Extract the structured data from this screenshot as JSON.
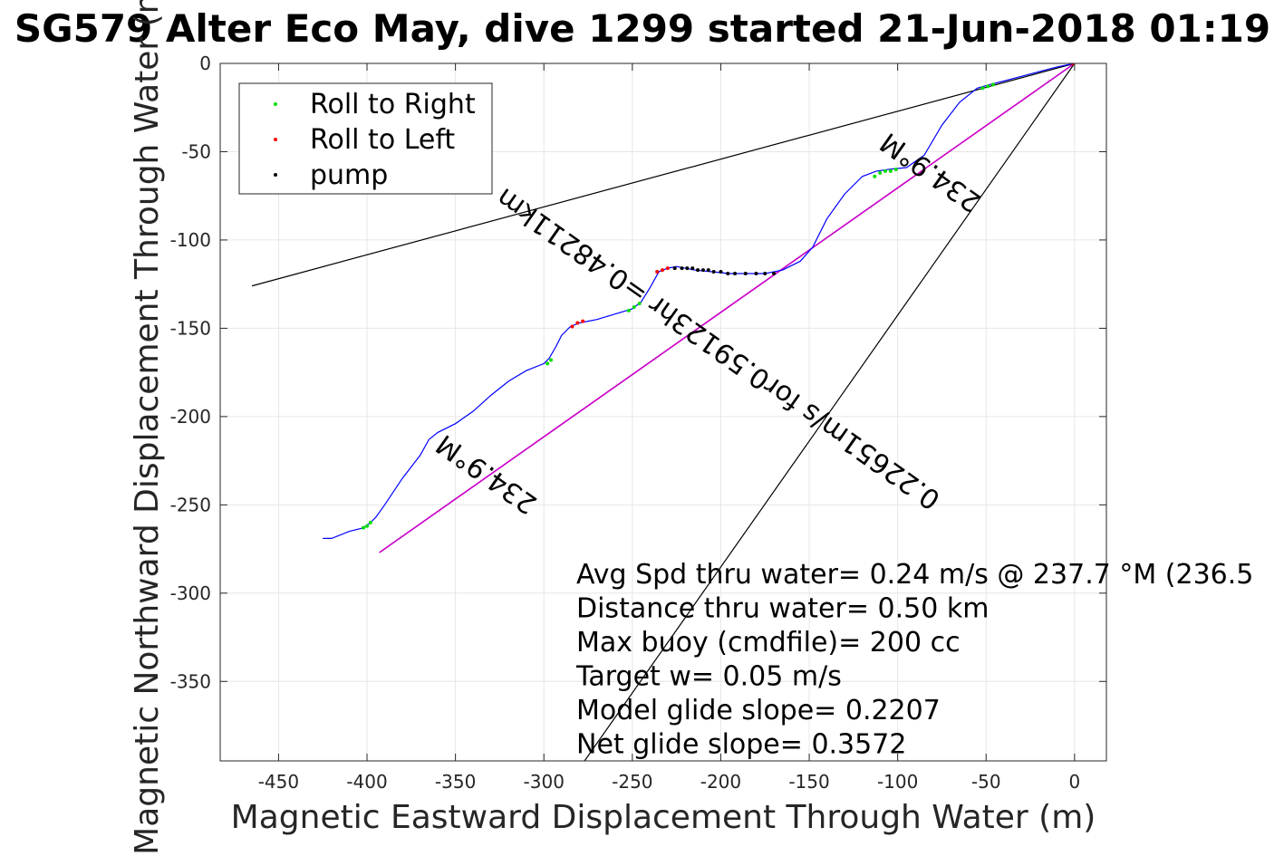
{
  "chart_data": {
    "type": "line",
    "title": "SG579 Alter Eco May, dive 1299 started 21-Jun-2018 01:19",
    "xlabel": "Magnetic Eastward Displacement Through Water (m)",
    "ylabel": "Magnetic Northward Displacement Through Water (m)",
    "xlim": [
      -483,
      18
    ],
    "ylim": [
      -395,
      0
    ],
    "xticks": [
      -450,
      -400,
      -350,
      -300,
      -250,
      -200,
      -150,
      -100,
      -50,
      0
    ],
    "yticks": [
      0,
      -50,
      -100,
      -150,
      -200,
      -250,
      -300,
      -350
    ],
    "grid": true,
    "legend_position": "top-left",
    "legend": [
      {
        "label": "Roll to Right",
        "color": "#00dd00"
      },
      {
        "label": "Roll to Left",
        "color": "#ff0000"
      },
      {
        "label": "pump",
        "color": "#000000"
      }
    ],
    "track": {
      "name": "glider track",
      "color": "#0000ff",
      "x": [
        -425,
        -420,
        -410,
        -402,
        -398,
        -395,
        -390,
        -380,
        -370,
        -365,
        -360,
        -350,
        -340,
        -330,
        -320,
        -310,
        -300,
        -297,
        -293,
        -290,
        -285,
        -280,
        -275,
        -270,
        -260,
        -250,
        -245,
        -240,
        -235,
        -230,
        -225,
        -215,
        -205,
        -195,
        -185,
        -175,
        -165,
        -155,
        -148,
        -140,
        -130,
        -120,
        -112,
        -105,
        -95,
        -85,
        -75,
        -65,
        -55,
        -48,
        -40,
        -25,
        -10,
        0
      ],
      "y": [
        -269,
        -269,
        -265,
        -263,
        -260,
        -257,
        -250,
        -235,
        -222,
        -213,
        -209,
        -204,
        -197,
        -188,
        -180,
        -174,
        -170,
        -167,
        -160,
        -154,
        -149,
        -147,
        -146,
        -145,
        -142,
        -139,
        -135,
        -127,
        -118,
        -116,
        -115,
        -117,
        -118,
        -119,
        -119,
        -119,
        -117,
        -112,
        -104,
        -88,
        -74,
        -64,
        -61,
        -60,
        -59,
        -52,
        -35,
        -22,
        -14,
        -12,
        -10,
        -6,
        -2,
        0
      ]
    },
    "roll_right": {
      "x": [
        -402,
        -400,
        -398,
        -298,
        -296,
        -252,
        -249,
        -246,
        -113,
        -110,
        -107,
        -104,
        -101,
        -52,
        -49,
        -46
      ],
      "y": [
        -263,
        -262,
        -260,
        -170,
        -168,
        -140,
        -138,
        -136,
        -64,
        -62,
        -61,
        -61,
        -60,
        -14,
        -13,
        -12
      ]
    },
    "roll_left": {
      "x": [
        -284,
        -281,
        -278,
        -236,
        -233,
        -230,
        -1
      ],
      "y": [
        -149,
        -147,
        -146,
        -118,
        -117,
        -116,
        0
      ]
    },
    "pump": {
      "x": [
        -226,
        -222,
        -219,
        -216,
        -213,
        -210,
        -207,
        -204,
        -200,
        -196,
        -192,
        -186,
        -180,
        -175,
        -170,
        -1
      ],
      "y": [
        -116,
        -116,
        -116,
        -116,
        -117,
        -117,
        -117,
        -118,
        -118,
        -119,
        -119,
        -119,
        -119,
        -119,
        -119,
        0
      ]
    },
    "reference_lines": [
      {
        "name": "heading line",
        "color": "#000000",
        "x": [
          -465,
          0
        ],
        "y": [
          -126,
          0
        ]
      },
      {
        "name": "heading line",
        "color": "#000000",
        "x": [
          -277,
          0
        ],
        "y": [
          -395,
          0
        ]
      },
      {
        "name": "heading line",
        "color": "#000000",
        "x": [
          -393,
          0
        ],
        "y": [
          -277,
          0
        ]
      },
      {
        "name": "net displacement",
        "color": "#cc00cc",
        "x": [
          -393,
          0
        ],
        "y": [
          -277,
          0
        ]
      }
    ],
    "annotations": [
      {
        "text": "234.9°M",
        "x": -332,
        "y": -232,
        "angle_deg": 35.2,
        "upside_down": true
      },
      {
        "text": "234.9°M",
        "x": -81,
        "y": -61,
        "angle_deg": 35.2,
        "upside_down": true
      },
      {
        "text": "0.22651m/s for0.59123hr =0.48211km",
        "x": -201,
        "y": -161,
        "angle_deg": 35.2,
        "upside_down": true
      }
    ],
    "stats": [
      "Avg Spd thru water=  0.24 m/s @ 237.7 °M (236.5",
      "Distance thru water=  0.50 km",
      "Max buoy (cmdfile)= 200 cc",
      "Target w= 0.05 m/s",
      "Model glide slope= 0.2207",
      "Net glide slope= 0.3572"
    ]
  }
}
